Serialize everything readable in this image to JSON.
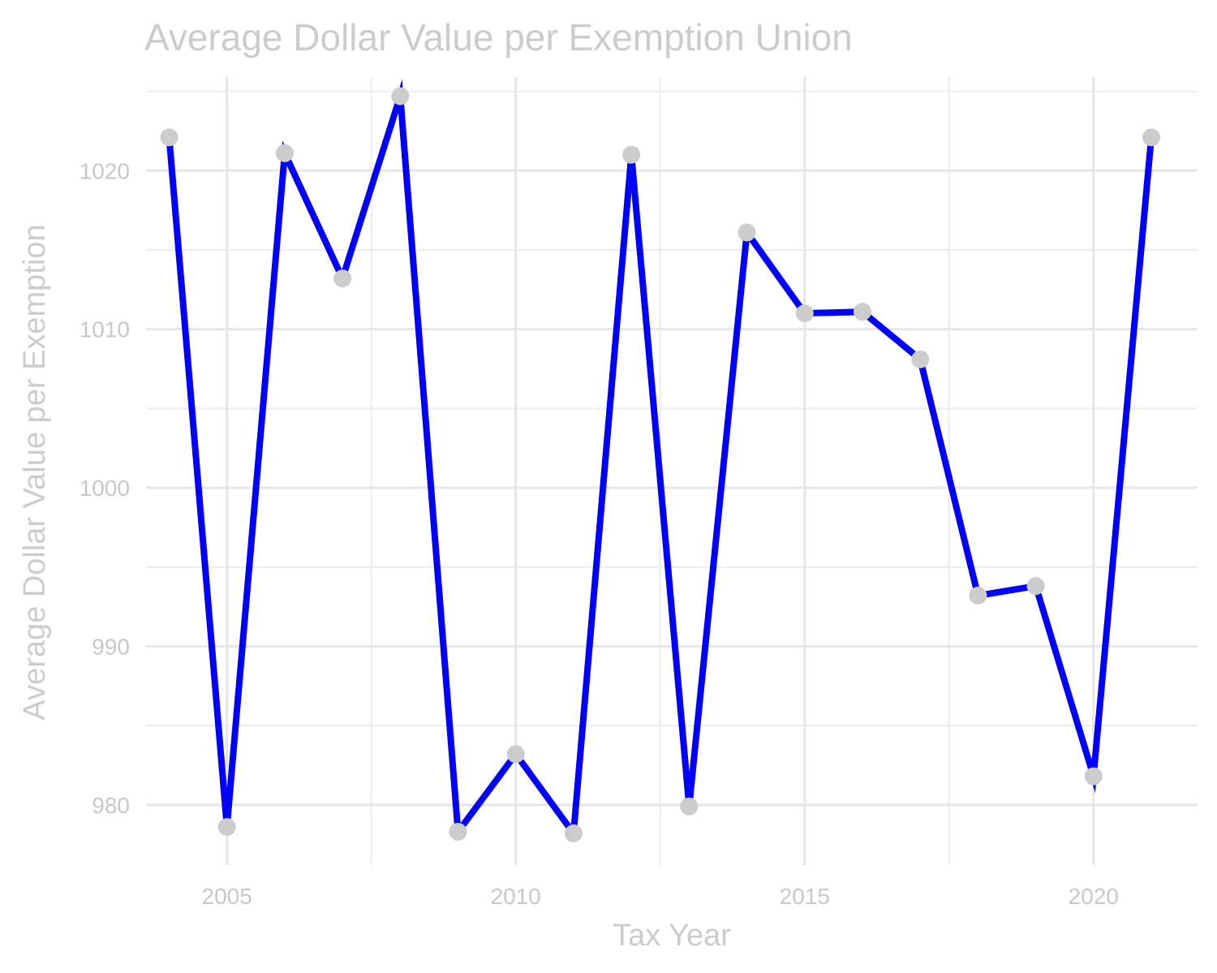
{
  "chart_data": {
    "type": "line",
    "title": "Average Dollar Value per Exemption Union",
    "xlabel": "Tax Year",
    "ylabel": "Average Dollar Value per Exemption",
    "x": [
      2004,
      2005,
      2006,
      2007,
      2008,
      2009,
      2010,
      2011,
      2012,
      2013,
      2014,
      2015,
      2016,
      2017,
      2018,
      2019,
      2020,
      2021
    ],
    "series": [
      {
        "values": [
          1022.1,
          978.6,
          1021.1,
          1013.2,
          1024.7,
          978.3,
          983.2,
          978.2,
          1021.0,
          979.9,
          1016.1,
          1011.0,
          1011.1,
          1008.1,
          993.2,
          993.8,
          981.8,
          1022.1
        ]
      }
    ],
    "xticks": [
      "2005",
      "2010",
      "2015",
      "2020"
    ],
    "yticks": [
      "980",
      "990",
      "1000",
      "1010",
      "1020"
    ],
    "xlim": [
      2003.6,
      2021.8
    ],
    "ylim": [
      976.2,
      1025.9
    ],
    "grid": true,
    "legend": "none",
    "colors": {
      "line": "#0000ff",
      "point": "#cccccc"
    }
  }
}
